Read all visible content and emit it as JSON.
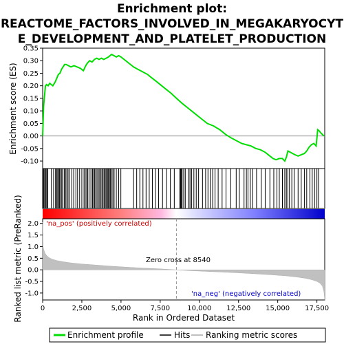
{
  "chart_data": {
    "type": "line",
    "title_lines": [
      "Enrichment plot:",
      "REACTOME_FACTORS_INVOLVED_IN_MEGAKARYOCYT",
      "E_DEVELOPMENT_AND_PLATELET_PRODUCTION"
    ],
    "top_panel": {
      "ylabel": "Enrichment score (ES)",
      "ylim": [
        -0.13,
        0.35
      ],
      "yticks": [
        -0.1,
        -0.05,
        0.0,
        0.05,
        0.1,
        0.15,
        0.2,
        0.25,
        0.3,
        0.35
      ],
      "ytick_labels": [
        "-0.10",
        "-0.05",
        "0.00",
        "0.05",
        "0.10",
        "0.15",
        "0.20",
        "0.25",
        "0.30",
        "0.35"
      ],
      "series": [
        {
          "name": "Enrichment profile",
          "color": "#00dd00",
          "x": [
            0,
            60,
            120,
            180,
            250,
            350,
            450,
            550,
            650,
            800,
            900,
            1000,
            1100,
            1200,
            1300,
            1400,
            1500,
            1650,
            1800,
            2000,
            2200,
            2400,
            2600,
            2750,
            2850,
            3000,
            3150,
            3300,
            3450,
            3600,
            3750,
            3900,
            4050,
            4200,
            4300,
            4400,
            4550,
            4700,
            4850,
            5000,
            5200,
            5500,
            5800,
            6100,
            6400,
            6700,
            7000,
            7300,
            7600,
            7900,
            8200,
            8540,
            8900,
            9300,
            9700,
            10100,
            10500,
            10900,
            11300,
            11700,
            12100,
            12400,
            12700,
            13000,
            13300,
            13600,
            13900,
            14200,
            14500,
            14700,
            14900,
            15100,
            15300,
            15450,
            15550,
            15650,
            15800,
            15950,
            16100,
            16300,
            16500,
            16700,
            16850,
            17000,
            17150,
            17300,
            17450,
            17550,
            17650,
            17750,
            17850,
            17950
          ],
          "y": [
            0.0,
            0.12,
            0.16,
            0.2,
            0.205,
            0.2,
            0.21,
            0.205,
            0.2,
            0.215,
            0.23,
            0.245,
            0.25,
            0.265,
            0.275,
            0.285,
            0.285,
            0.28,
            0.275,
            0.28,
            0.275,
            0.27,
            0.26,
            0.28,
            0.29,
            0.3,
            0.295,
            0.305,
            0.31,
            0.305,
            0.31,
            0.305,
            0.31,
            0.315,
            0.32,
            0.325,
            0.32,
            0.315,
            0.32,
            0.315,
            0.305,
            0.29,
            0.275,
            0.265,
            0.255,
            0.245,
            0.23,
            0.215,
            0.2,
            0.185,
            0.17,
            0.15,
            0.13,
            0.11,
            0.09,
            0.07,
            0.05,
            0.04,
            0.025,
            0.005,
            -0.01,
            -0.02,
            -0.03,
            -0.035,
            -0.04,
            -0.05,
            -0.055,
            -0.065,
            -0.08,
            -0.09,
            -0.095,
            -0.09,
            -0.09,
            -0.1,
            -0.085,
            -0.06,
            -0.065,
            -0.07,
            -0.075,
            -0.08,
            -0.075,
            -0.07,
            -0.06,
            -0.045,
            -0.035,
            -0.03,
            -0.04,
            0.025,
            0.02,
            0.012,
            0.006,
            0.0
          ]
        }
      ]
    },
    "hits": {
      "name": "Hits",
      "positions": [
        40,
        90,
        150,
        210,
        270,
        330,
        560,
        700,
        820,
        900,
        960,
        1020,
        1080,
        1150,
        1220,
        1290,
        1380,
        1460,
        1540,
        1620,
        1700,
        1860,
        1980,
        2120,
        2230,
        2360,
        2500,
        2640,
        2720,
        2810,
        2880,
        2960,
        3080,
        3180,
        3250,
        3320,
        3390,
        3470,
        3560,
        3640,
        3720,
        3790,
        3860,
        3930,
        4000,
        4070,
        4140,
        4200,
        4260,
        4320,
        4400,
        4480,
        4560,
        4700,
        4850,
        4990,
        5800,
        6000,
        6200,
        6400,
        6600,
        6800,
        7000,
        7200,
        7400,
        7650,
        7900,
        8150,
        8400,
        8750,
        8800,
        8850,
        8900,
        9000,
        9100,
        9300,
        9400,
        9500,
        9650,
        9800,
        9950,
        10200,
        10400,
        10550,
        10700,
        10850,
        11000,
        11200,
        11450,
        11700,
        12000,
        12350,
        12550,
        12850,
        13000,
        13100,
        13250,
        13400,
        13650,
        13950,
        14200,
        14500,
        14750,
        14950,
        15100,
        15300,
        15450,
        15550,
        15650,
        15750,
        15900,
        16050,
        16300,
        16500,
        16700,
        16850,
        17050,
        17200,
        17350,
        17500,
        17600
      ]
    },
    "metric_panel": {
      "ylabel": "Ranked list metric (PreRanked)",
      "xlabel": "Rank in Ordered Dataset",
      "ylim": [
        -1.3,
        2.2
      ],
      "yticks": [
        -1.0,
        -0.5,
        0.0,
        0.5,
        1.0,
        1.5,
        2.0
      ],
      "ytick_labels": [
        "-1.0",
        "-0.5",
        "0.0",
        "0.5",
        "1.0",
        "1.5",
        "2.0"
      ],
      "fill_color": "#c0c0c0",
      "x": [
        0,
        30,
        80,
        150,
        250,
        400,
        600,
        900,
        1300,
        1800,
        2500,
        3500,
        4500,
        5500,
        6500,
        7500,
        8540,
        9500,
        10500,
        11500,
        12500,
        13500,
        14500,
        15500,
        16200,
        16800,
        17200,
        17500,
        17700,
        17850,
        17950,
        18000
      ],
      "y": [
        2.05,
        1.0,
        0.85,
        0.72,
        0.62,
        0.53,
        0.46,
        0.4,
        0.35,
        0.3,
        0.25,
        0.2,
        0.15,
        0.11,
        0.07,
        0.04,
        0.0,
        -0.04,
        -0.07,
        -0.1,
        -0.13,
        -0.17,
        -0.21,
        -0.26,
        -0.31,
        -0.37,
        -0.43,
        -0.5,
        -0.58,
        -0.7,
        -0.95,
        -1.3
      ],
      "zero_cross_label": "Zero cross at 8540",
      "zero_cross": 8540,
      "pos_label": "'na_pos' (positively correlated)",
      "neg_label": "'na_neg' (negatively correlated)",
      "pos_color": "#ff0000",
      "neg_color": "#0000ff"
    },
    "xlim": [
      0,
      18000
    ],
    "xticks": [
      0,
      2500,
      5000,
      7500,
      10000,
      12500,
      15000,
      17500
    ],
    "xtick_labels": [
      "0",
      "2,500",
      "5,000",
      "7,500",
      "10,000",
      "12,500",
      "15,000",
      "17,500"
    ],
    "legend": [
      {
        "label": "Enrichment profile",
        "color": "#00dd00"
      },
      {
        "label": "Hits",
        "color": "#000000"
      },
      {
        "label": "Ranking metric scores",
        "color": "#c0c0c0"
      }
    ]
  }
}
